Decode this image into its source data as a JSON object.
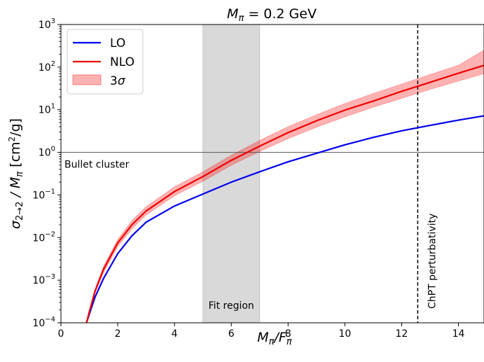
{
  "chart_data": {
    "type": "line",
    "title_prefix": "M",
    "title_sub": "π",
    "title_suffix": " = 0.2 GeV",
    "xlabel_main": "M",
    "xlabel_sub1": "π",
    "xlabel_slash": "/F",
    "xlabel_sub2": "π",
    "ylabel_main": "σ",
    "ylabel_sub1": "2→2",
    "ylabel_slash": " / M",
    "ylabel_sub2": "π",
    "ylabel_unit_pre": "  [cm",
    "ylabel_unit_sup": "2",
    "ylabel_unit_post": "/g]",
    "xlim": [
      0,
      14.9
    ],
    "ylim": [
      0.0001,
      1000
    ],
    "yscale": "log",
    "xticks": [
      0,
      2,
      4,
      6,
      8,
      10,
      12,
      14
    ],
    "xtick_labels": [
      "0",
      "2",
      "4",
      "6",
      "8",
      "10",
      "12",
      "14"
    ],
    "yticks": [
      0.0001,
      0.001,
      0.01,
      0.1,
      1,
      10,
      100,
      1000
    ],
    "ytick_labels": [
      {
        "base": "10",
        "exp": "−4"
      },
      {
        "base": "10",
        "exp": "−3"
      },
      {
        "base": "10",
        "exp": "−2"
      },
      {
        "base": "10",
        "exp": "−1"
      },
      {
        "base": "10",
        "exp": "0"
      },
      {
        "base": "10",
        "exp": "1"
      },
      {
        "base": "10",
        "exp": "2"
      },
      {
        "base": "10",
        "exp": "3"
      }
    ],
    "x": [
      0.9,
      1.0,
      1.2,
      1.5,
      2.0,
      2.5,
      3.0,
      4.0,
      5.0,
      6.0,
      7.0,
      8.0,
      9.0,
      10.0,
      11.0,
      12.0,
      13.0,
      14.0,
      14.9
    ],
    "series": [
      {
        "name": "LO",
        "color": "#0000ee",
        "values": [
          0.0001,
          0.00016,
          0.0004,
          0.0011,
          0.0042,
          0.011,
          0.023,
          0.055,
          0.105,
          0.2,
          0.35,
          0.6,
          0.95,
          1.5,
          2.25,
          3.2,
          4.3,
          5.7,
          7.2
        ]
      },
      {
        "name": "NLO",
        "color": "#ee0000",
        "values": [
          0.0001,
          0.00018,
          0.00055,
          0.0018,
          0.0075,
          0.02,
          0.042,
          0.12,
          0.27,
          0.65,
          1.4,
          2.9,
          5.5,
          9.8,
          16,
          27,
          44,
          72,
          110
        ],
        "band_lower": [
          0.0001,
          0.00016,
          0.0005,
          0.0015,
          0.0062,
          0.016,
          0.034,
          0.096,
          0.21,
          0.5,
          1.05,
          2.1,
          3.9,
          6.8,
          11.5,
          18.5,
          30,
          47,
          70
        ],
        "band_upper": [
          0.0001,
          0.0002,
          0.00062,
          0.0021,
          0.009,
          0.025,
          0.053,
          0.155,
          0.35,
          0.85,
          1.9,
          4.0,
          7.6,
          14,
          24,
          40,
          67,
          110,
          250
        ]
      }
    ],
    "band": {
      "name_base": "3",
      "name_sym": "σ",
      "color": "#ff0000",
      "opacity": 0.3
    },
    "shaded_region": {
      "x0": 5.0,
      "x1": 7.0,
      "label": "Fit region"
    },
    "hline": {
      "y": 1,
      "label": "Bullet cluster"
    },
    "vline": {
      "x": 12.566,
      "label": "ChPT perturbativity"
    },
    "legend": {
      "position": "top-left"
    },
    "grid": false
  }
}
